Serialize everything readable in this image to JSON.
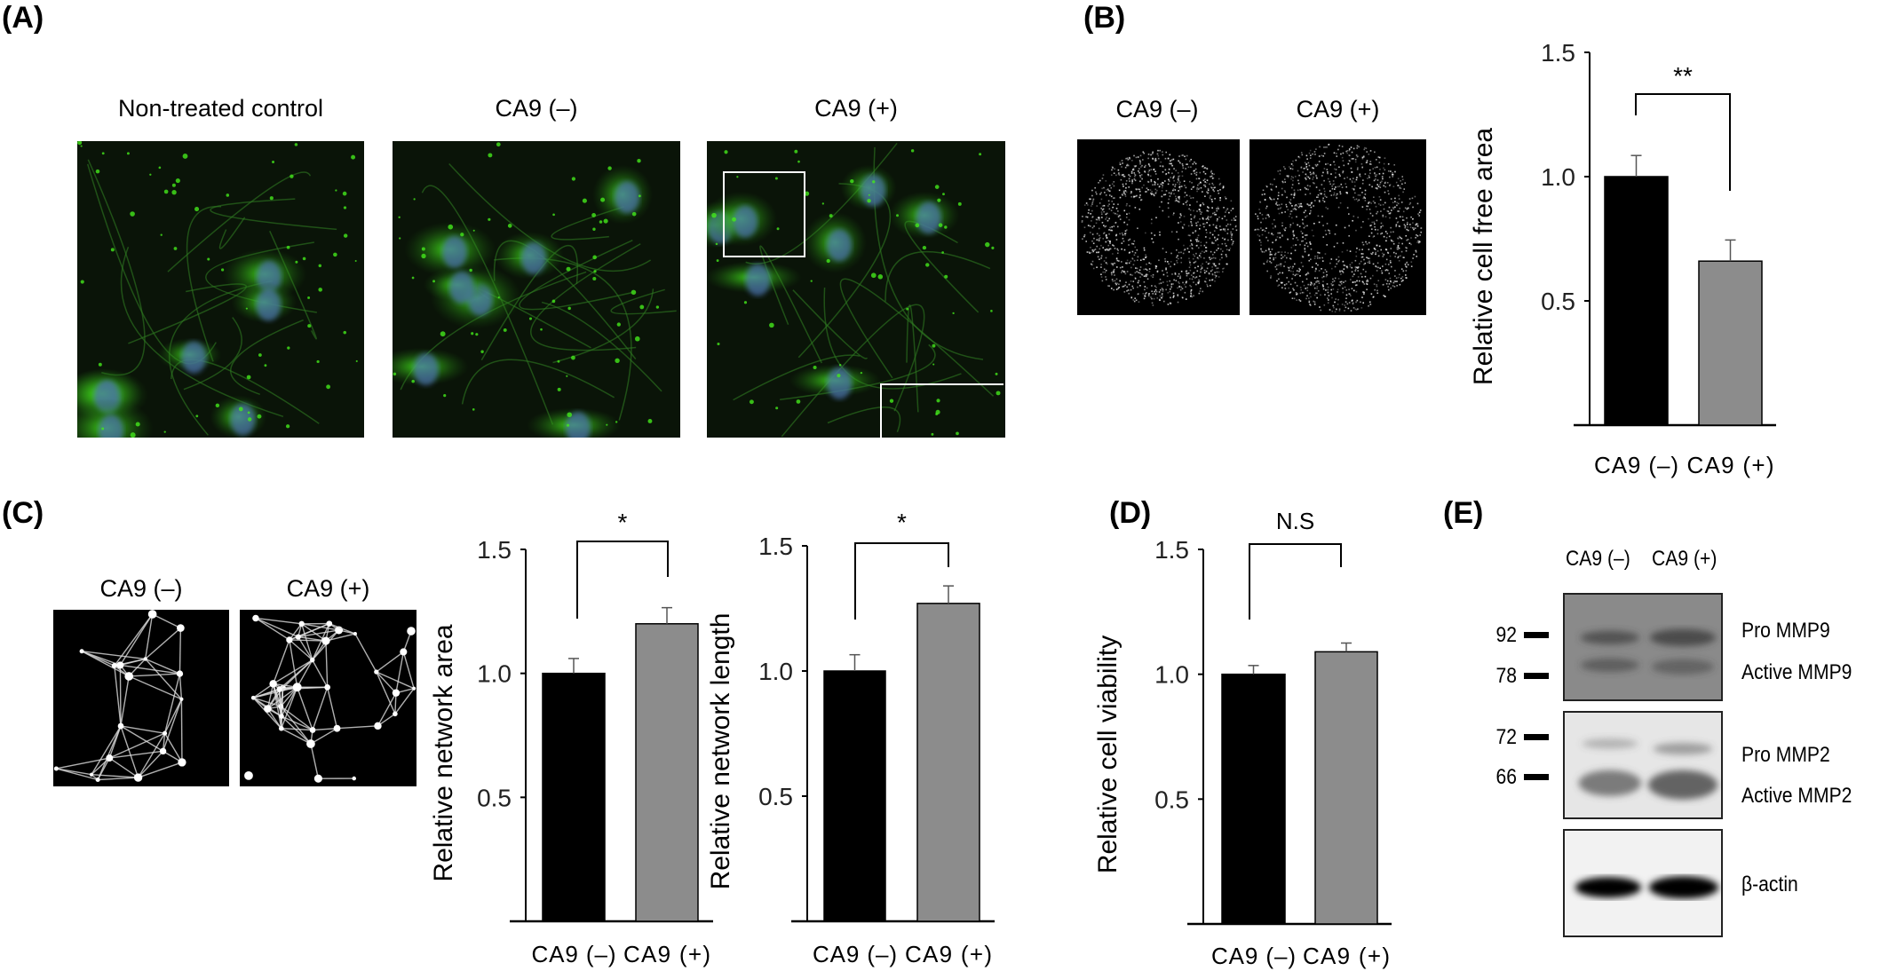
{
  "panels": {
    "A": {
      "label": "(A)",
      "titles": [
        "Non-treated control",
        "CA9 (–)",
        "CA9 (+)"
      ]
    },
    "B": {
      "label": "(B)",
      "titles": [
        "CA9 (–)",
        "CA9 (+)"
      ]
    },
    "C": {
      "label": "(C)",
      "titles": [
        "CA9 (–)",
        "CA9 (+)"
      ]
    },
    "D": {
      "label": "(D)"
    },
    "E": {
      "label": "(E)",
      "columns": [
        "CA9 (–)",
        "CA9 (+)"
      ],
      "markers": [
        "92",
        "78",
        "72",
        "66"
      ],
      "bands": [
        "Pro MMP9",
        "Active MMP9",
        "Pro MMP2",
        "Active MMP2",
        "β-actin"
      ]
    }
  },
  "colors": {
    "black_bar": "#000000",
    "grey_bar": "#8c8c8c",
    "fluorescence": "#44e81c",
    "nucleus": "#4a6fa8"
  },
  "chart_data": [
    {
      "panel": "B",
      "type": "bar",
      "categories": [
        "CA9 (–)",
        "CA9 (+)"
      ],
      "values": [
        1.0,
        0.66
      ],
      "errors": [
        0.085,
        0.085
      ],
      "ylabel": "Relative cell free area",
      "ylim": [
        0,
        1.5
      ],
      "yticks": [
        "0.5",
        "1.0",
        "1.5"
      ],
      "significance": "**",
      "grid": false
    },
    {
      "panel": "C",
      "type": "bar",
      "categories": [
        "CA9 (–)",
        "CA9 (+)"
      ],
      "values": [
        1.0,
        1.2
      ],
      "errors": [
        0.06,
        0.065
      ],
      "ylabel": "Relative network area",
      "ylim": [
        0,
        1.5
      ],
      "yticks": [
        "0.5",
        "1.0",
        "1.5"
      ],
      "significance": "*",
      "grid": false
    },
    {
      "panel": "C",
      "type": "bar",
      "categories": [
        "CA9 (–)",
        "CA9 (+)"
      ],
      "values": [
        1.0,
        1.27
      ],
      "errors": [
        0.065,
        0.07
      ],
      "ylabel": "Relative network length",
      "ylim": [
        0,
        1.5
      ],
      "yticks": [
        "0.5",
        "1.0",
        "1.5"
      ],
      "significance": "*",
      "grid": false
    },
    {
      "panel": "D",
      "type": "bar",
      "categories": [
        "CA9 (–)",
        "CA9 (+)"
      ],
      "values": [
        1.0,
        1.09
      ],
      "errors": [
        0.035,
        0.035
      ],
      "ylabel": "Relative cell viability",
      "ylim": [
        0,
        1.5
      ],
      "yticks": [
        "0.5",
        "1.0",
        "1.5"
      ],
      "significance": "N.S",
      "grid": false
    }
  ]
}
